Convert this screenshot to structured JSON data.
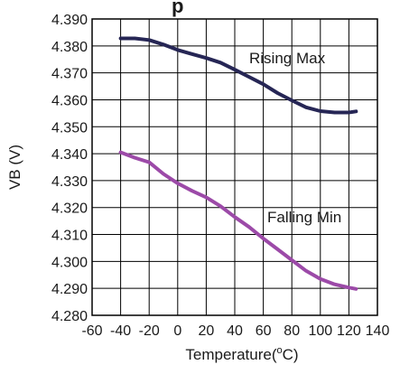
{
  "chart_data": {
    "type": "line",
    "title": "p",
    "xlabel": "Temperature(",
    "xlabel_unit": "C)",
    "xlabel_sup": "o",
    "ylabel": "VB (V)",
    "xlim": [
      -60,
      140
    ],
    "ylim": [
      4.28,
      4.39
    ],
    "x_ticks": [
      "-60",
      "-40",
      "-20",
      "0",
      "20",
      "40",
      "60",
      "80",
      "100",
      "120",
      "140"
    ],
    "y_ticks": [
      "4.280",
      "4.290",
      "4.300",
      "4.310",
      "4.320",
      "4.330",
      "4.340",
      "4.350",
      "4.360",
      "4.370",
      "4.380",
      "4.390"
    ],
    "grid": true,
    "series": [
      {
        "name": "Rising Max",
        "color": "#262655",
        "x": [
          -40,
          -30,
          -20,
          -10,
          0,
          10,
          20,
          30,
          40,
          50,
          60,
          70,
          80,
          90,
          100,
          110,
          120,
          125
        ],
        "values": [
          4.3828,
          4.3828,
          4.3822,
          4.3805,
          4.3785,
          4.377,
          4.3755,
          4.3738,
          4.3712,
          4.3685,
          4.3658,
          4.3625,
          4.3598,
          4.3572,
          4.3558,
          4.3553,
          4.3553,
          4.3557
        ]
      },
      {
        "name": "Falling Min",
        "color": "#9c4aa8",
        "x": [
          -40,
          -30,
          -20,
          -10,
          0,
          10,
          20,
          30,
          40,
          50,
          60,
          70,
          80,
          90,
          100,
          110,
          120,
          125
        ],
        "values": [
          4.3405,
          4.3385,
          4.3368,
          4.3325,
          4.329,
          4.3262,
          4.3238,
          4.3205,
          4.3165,
          4.3128,
          4.3085,
          4.3045,
          4.3005,
          4.2965,
          4.2935,
          4.2915,
          4.2903,
          4.2898
        ]
      }
    ]
  }
}
